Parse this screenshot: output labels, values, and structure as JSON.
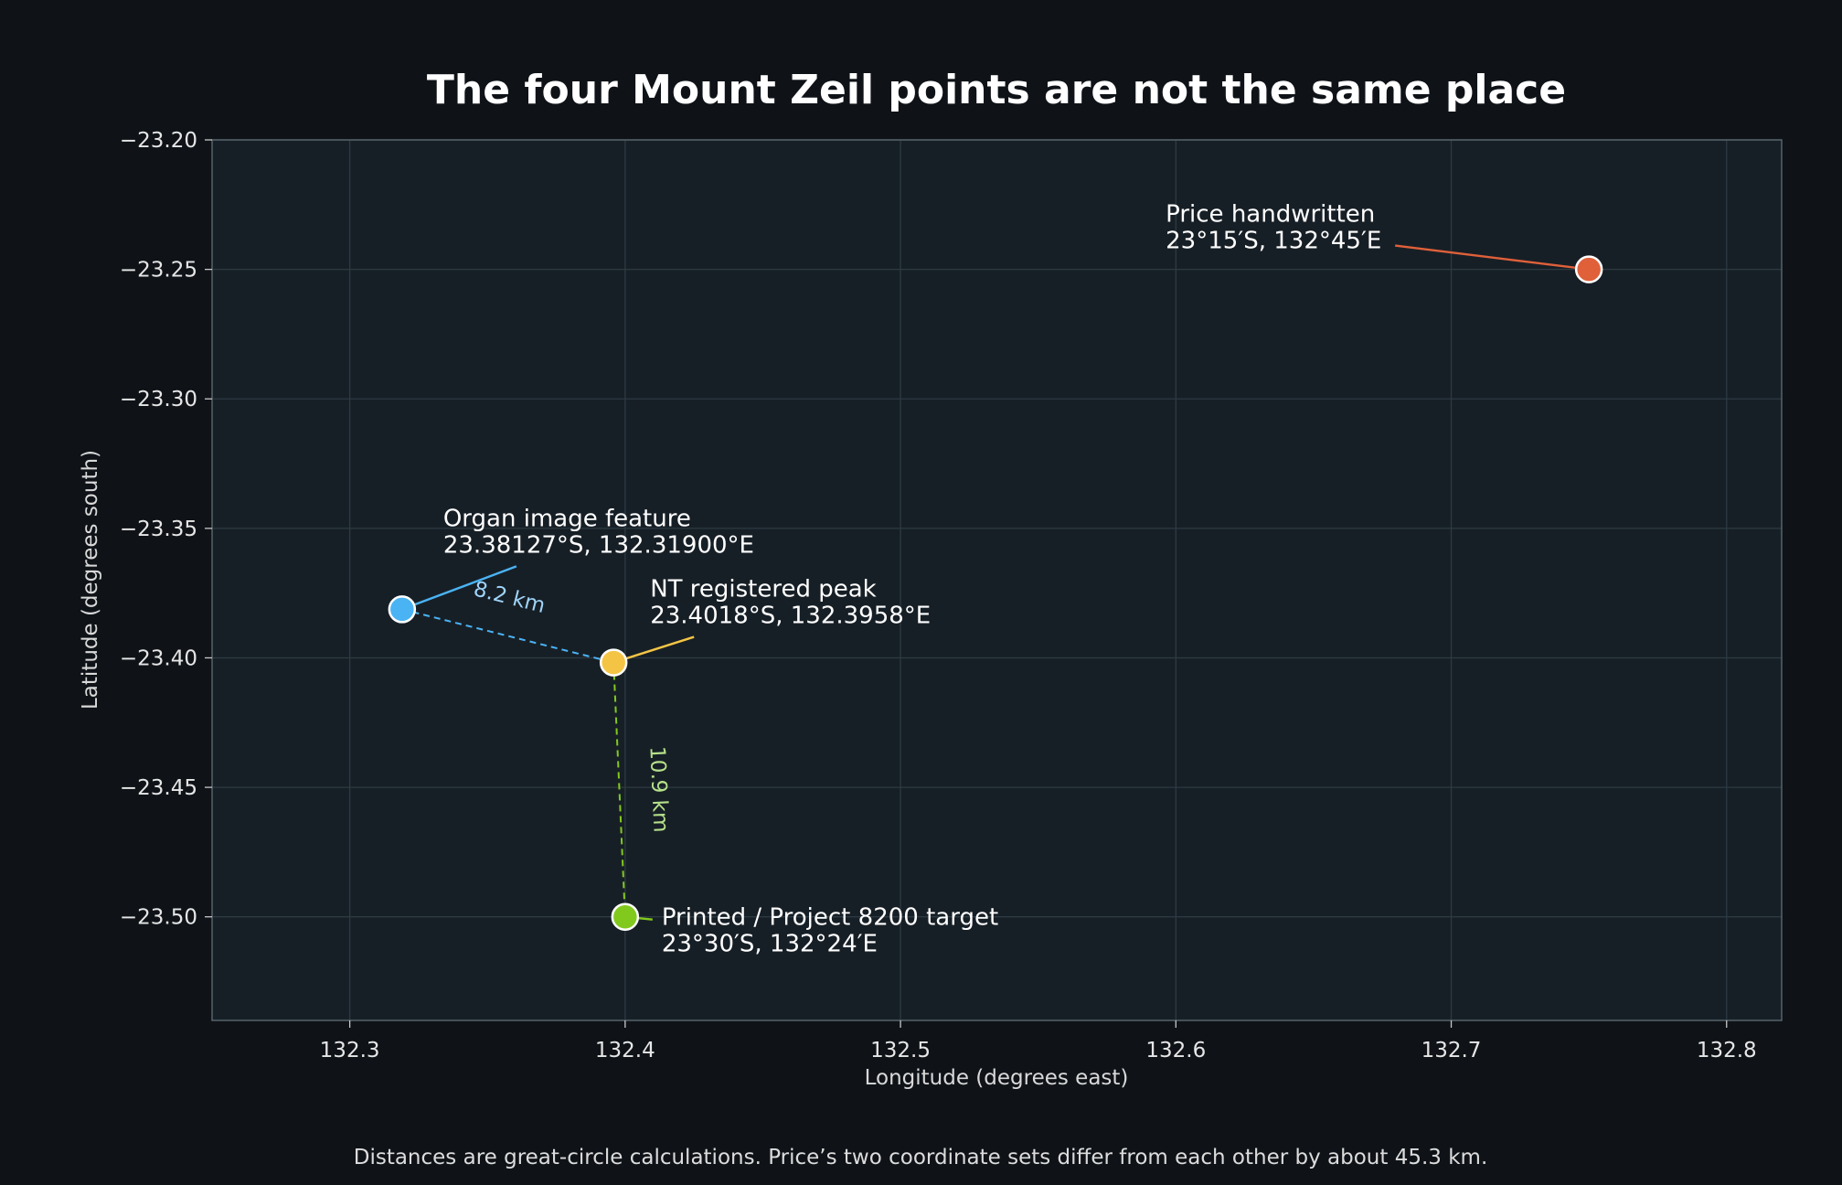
{
  "chart_data": {
    "type": "scatter",
    "title": "The four Mount Zeil points are not the same place",
    "xlabel": "Longitude (degrees east)",
    "ylabel": "Latitude (degrees south)",
    "xlim": [
      132.25,
      132.82
    ],
    "ylim": [
      -23.54,
      -23.2
    ],
    "xticks": [
      132.3,
      132.4,
      132.5,
      132.6,
      132.7,
      132.8
    ],
    "xtick_labels": [
      "132.3",
      "132.4",
      "132.5",
      "132.6",
      "132.7",
      "132.8"
    ],
    "yticks": [
      -23.2,
      -23.25,
      -23.3,
      -23.35,
      -23.4,
      -23.45,
      -23.5
    ],
    "ytick_labels": [
      "−23.20",
      "−23.25",
      "−23.30",
      "−23.35",
      "−23.40",
      "−23.45",
      "−23.50"
    ],
    "grid": true,
    "points": [
      {
        "id": "price",
        "lon": 132.75,
        "lat": -23.25,
        "color": "#e0603a",
        "label": "Price handwritten",
        "coords": "23°15′S, 132°45′E"
      },
      {
        "id": "organ",
        "lon": 132.319,
        "lat": -23.38127,
        "color": "#4ab3f4",
        "label": "Organ image feature",
        "coords": "23.38127°S, 132.31900°E"
      },
      {
        "id": "nt",
        "lon": 132.3958,
        "lat": -23.4018,
        "color": "#f4c545",
        "label": "NT registered peak",
        "coords": "23.4018°S, 132.3958°E"
      },
      {
        "id": "printed",
        "lon": 132.4,
        "lat": -23.5,
        "color": "#82c91e",
        "label": "Printed / Project 8200 target",
        "coords": "23°30′S, 132°24′E"
      }
    ],
    "distances": [
      {
        "from": "organ",
        "to": "nt",
        "label": "8.2 km",
        "line_color": "#4ab3f4",
        "text_color": "#9fd4fa"
      },
      {
        "from": "nt",
        "to": "printed",
        "label": "10.9 km",
        "line_color": "#82c91e",
        "text_color": "#b5e08a"
      }
    ],
    "footnote": "Distances are great-circle calculations. Price’s two coordinate sets differ from each other by about 45.3 km."
  }
}
